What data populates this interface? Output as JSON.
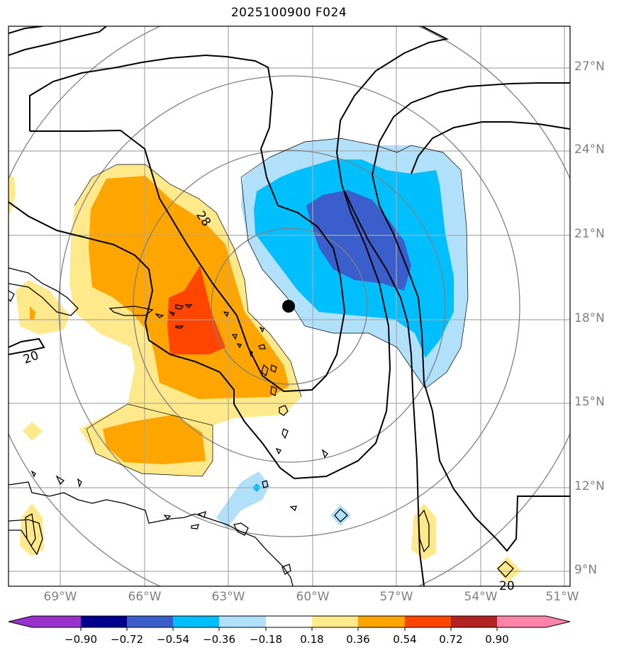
{
  "title": "2025100900 F024",
  "lat_ticks": [
    "27°N",
    "24°N",
    "21°N",
    "18°N",
    "15°N",
    "12°N",
    "9°N"
  ],
  "lon_ticks": [
    "69°W",
    "66°W",
    "63°W",
    "60°W",
    "57°W",
    "54°W",
    "51°W"
  ],
  "contour_labels": [
    "28",
    "20",
    "20"
  ],
  "colorbar": {
    "labels": [
      "−0.90",
      "−0.72",
      "−0.54",
      "−0.36",
      "−0.18",
      "0.18",
      "0.36",
      "0.54",
      "0.72",
      "0.90"
    ],
    "colors": [
      "#9932cc",
      "#00008b",
      "#3a5fcd",
      "#00bfff",
      "#b0e0fa",
      "#ffffff",
      "#ffe98a",
      "#ffa500",
      "#ff4500",
      "#b22222",
      "#ff82ab"
    ]
  },
  "storm_center": "filled-circle-marker",
  "colors": {
    "grid": "#a9a9a9",
    "range_rings": "#808080",
    "contours": "#000000",
    "tick_text": "#808080"
  }
}
